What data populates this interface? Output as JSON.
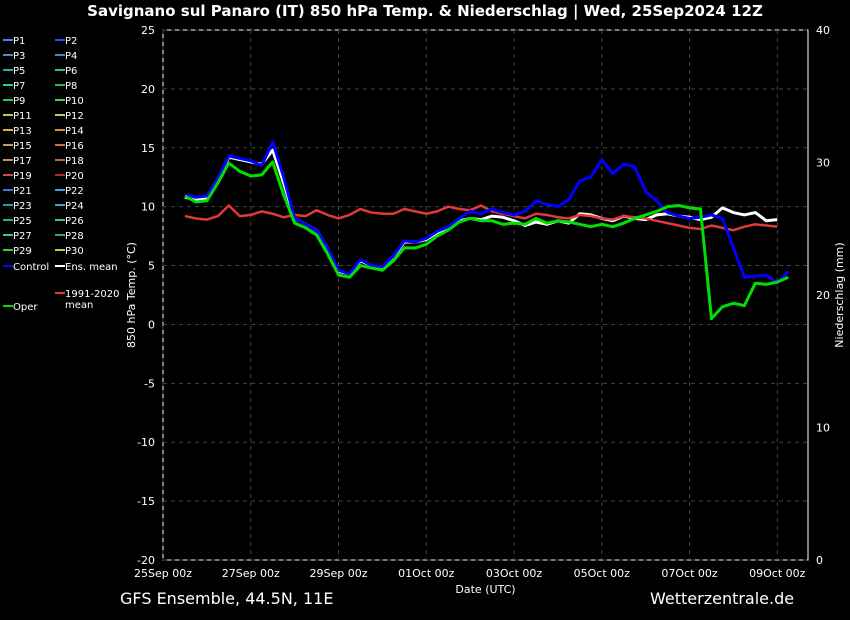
{
  "title": "Savignano sul Panaro  (IT)  850 hPa Temp. & Niederschlag | Wed, 25Sep2024 12Z",
  "footer_left": "GFS Ensemble, 44.5N, 11E",
  "footer_right": "Wetterzentrale.de",
  "chart_data": {
    "type": "line",
    "xlabel": "Date (UTC)",
    "ylabel": "850 hPa Temp. (°C)",
    "y2label": "Niederschlag (mm)",
    "ylim": [
      -20,
      25
    ],
    "y2lim": [
      0,
      40
    ],
    "yticks": [
      25,
      20,
      15,
      10,
      5,
      0,
      -5,
      -10,
      -15,
      -20
    ],
    "y2ticks": [
      40,
      30,
      20,
      10,
      0
    ],
    "x_tick_labels": [
      "25Sep 00z",
      "27Sep 00z",
      "29Sep 00z",
      "01Oct 00z",
      "03Oct 00z",
      "05Oct 00z",
      "07Oct 00z",
      "09Oct 00z"
    ],
    "x_step_hours": 6,
    "x_range_days": 14.7,
    "grid": true,
    "legend_placement": "left",
    "legend": [
      {
        "name": "P1",
        "color": "#5a78ff"
      },
      {
        "name": "P2",
        "color": "#2f49ff"
      },
      {
        "name": "P3",
        "color": "#4d8ac9"
      },
      {
        "name": "P4",
        "color": "#2d8fd0"
      },
      {
        "name": "P5",
        "color": "#1fb5b5"
      },
      {
        "name": "P6",
        "color": "#23c58e"
      },
      {
        "name": "P7",
        "color": "#1fcf9f"
      },
      {
        "name": "P8",
        "color": "#2ab84f"
      },
      {
        "name": "P9",
        "color": "#22c85c"
      },
      {
        "name": "P10",
        "color": "#3bd23b"
      },
      {
        "name": "P11",
        "color": "#c9c23a"
      },
      {
        "name": "P12",
        "color": "#d4c35e"
      },
      {
        "name": "P13",
        "color": "#d6b23a"
      },
      {
        "name": "P14",
        "color": "#d98f33"
      },
      {
        "name": "P15",
        "color": "#c99a5e"
      },
      {
        "name": "P16",
        "color": "#c1743c"
      },
      {
        "name": "P17",
        "color": "#d3875f"
      },
      {
        "name": "P18",
        "color": "#b56a4c"
      },
      {
        "name": "P19",
        "color": "#c8503e"
      },
      {
        "name": "P20",
        "color": "#b02c24"
      },
      {
        "name": "P21",
        "color": "#3b74c8"
      },
      {
        "name": "P22",
        "color": "#3aa2e0"
      },
      {
        "name": "P23",
        "color": "#2e9aa8"
      },
      {
        "name": "P24",
        "color": "#38a7c0"
      },
      {
        "name": "P25",
        "color": "#27b07a"
      },
      {
        "name": "P26",
        "color": "#2ac79a"
      },
      {
        "name": "P27",
        "color": "#33c2aa"
      },
      {
        "name": "P28",
        "color": "#2fa66b"
      },
      {
        "name": "P29",
        "color": "#2ccf3d"
      },
      {
        "name": "P30",
        "color": "#c7c82c"
      },
      {
        "name": "Control",
        "color": "#0000ff"
      },
      {
        "name": "Ens. mean",
        "color": "#ffffff"
      },
      {
        "name": "1991-2020 mean",
        "color": "#e03a3a"
      },
      {
        "name": "Oper",
        "color": "#00e000"
      }
    ],
    "series": [
      {
        "name": "Ens. mean",
        "color": "#ffffff",
        "values": [
          10.8,
          10.6,
          10.7,
          12.3,
          14.2,
          14.0,
          13.8,
          13.6,
          14.8,
          12.0,
          9.0,
          8.5,
          8.0,
          6.5,
          4.5,
          4.3,
          5.4,
          5.0,
          4.8,
          5.7,
          7.0,
          7.0,
          7.2,
          7.8,
          8.2,
          8.8,
          9.0,
          8.9,
          9.2,
          9.1,
          8.8,
          8.4,
          8.7,
          8.5,
          8.8,
          8.6,
          9.4,
          9.3,
          9.0,
          8.8,
          9.2,
          9.0,
          8.9,
          9.3,
          9.4,
          9.2,
          9.1,
          8.9,
          9.1,
          9.9,
          9.5,
          9.3,
          9.5,
          8.8,
          8.9
        ]
      },
      {
        "name": "1991-2020 mean",
        "color": "#e03a3a",
        "values": [
          9.2,
          9.0,
          8.9,
          9.2,
          10.1,
          9.2,
          9.3,
          9.6,
          9.4,
          9.1,
          9.3,
          9.2,
          9.7,
          9.3,
          9.0,
          9.3,
          9.8,
          9.5,
          9.4,
          9.4,
          9.8,
          9.6,
          9.4,
          9.6,
          10.0,
          9.8,
          9.7,
          10.1,
          9.6,
          9.4,
          9.2,
          9.0,
          9.4,
          9.3,
          9.1,
          9.0,
          9.3,
          9.2,
          9.0,
          8.9,
          9.2,
          9.1,
          9.0,
          8.8,
          8.6,
          8.4,
          8.2,
          8.1,
          8.4,
          8.2,
          8.0,
          8.3,
          8.5,
          8.4,
          8.3
        ]
      },
      {
        "name": "Control",
        "color": "#0000ff",
        "values": [
          11.0,
          10.8,
          10.9,
          12.4,
          14.3,
          14.1,
          13.9,
          13.5,
          15.5,
          12.5,
          9.0,
          8.5,
          8.0,
          6.5,
          4.6,
          4.3,
          5.5,
          5.0,
          4.9,
          5.8,
          7.1,
          7.0,
          7.3,
          7.9,
          8.3,
          9.0,
          9.6,
          9.4,
          9.8,
          9.5,
          9.3,
          9.6,
          10.5,
          10.2,
          10.0,
          10.6,
          12.2,
          12.5,
          14.0,
          12.8,
          13.6,
          13.4,
          11.3,
          10.5,
          9.5,
          9.2,
          9.0,
          9.1,
          9.3,
          9.0,
          6.5,
          4.0,
          4.1,
          4.2,
          3.5,
          4.5
        ]
      },
      {
        "name": "Oper",
        "color": "#00e000",
        "values": [
          10.9,
          10.4,
          10.5,
          12.0,
          13.7,
          13.0,
          12.6,
          12.7,
          13.8,
          11.0,
          8.6,
          8.2,
          7.6,
          6.0,
          4.2,
          4.0,
          5.0,
          4.8,
          4.6,
          5.4,
          6.5,
          6.5,
          6.8,
          7.5,
          8.0,
          8.7,
          9.0,
          8.8,
          8.8,
          8.5,
          8.6,
          8.5,
          9.0,
          8.6,
          8.8,
          8.7,
          8.5,
          8.3,
          8.5,
          8.3,
          8.6,
          9.0,
          9.3,
          9.6,
          10.0,
          10.1,
          9.9,
          9.8,
          0.5,
          1.5,
          1.8,
          1.6,
          3.5,
          3.4,
          3.6,
          4.0
        ]
      }
    ]
  }
}
